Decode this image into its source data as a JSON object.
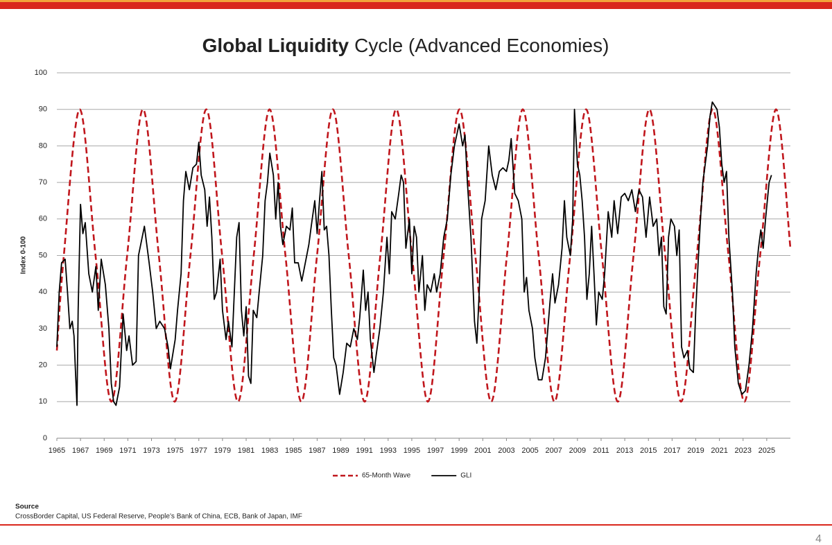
{
  "chart_data": {
    "type": "line",
    "title": {
      "bold": "Global Liquidity",
      "regular": "Cycle (Advanced Economies)"
    },
    "y_axis_label": "Index 0-100",
    "xlim": [
      1965,
      2027
    ],
    "xticks": [
      1965,
      1967,
      1969,
      1971,
      1973,
      1975,
      1977,
      1979,
      1981,
      1983,
      1985,
      1987,
      1989,
      1991,
      1993,
      1995,
      1997,
      1999,
      2001,
      2003,
      2005,
      2007,
      2009,
      2011,
      2013,
      2015,
      2017,
      2019,
      2021,
      2023,
      2025
    ],
    "ylim": [
      0,
      100
    ],
    "yticks": [
      0,
      10,
      20,
      30,
      40,
      50,
      60,
      70,
      80,
      90,
      100
    ],
    "grid": true,
    "legend": "bottom",
    "series": [
      {
        "name": "65-Month Wave",
        "color": "#c0161c",
        "dashed": true,
        "smooth": true,
        "x": [
          1965,
          1965.59,
          1966.93,
          1968.27,
          1969.61,
          1970.94,
          1972.28,
          1973.62,
          1974.96,
          1976.29,
          1977.63,
          1978.97,
          1980.31,
          1981.64,
          1982.98,
          1984.32,
          1985.66,
          1986.99,
          1988.33,
          1989.67,
          1991.01,
          1992.34,
          1993.68,
          1995.02,
          1996.36,
          1997.69,
          1999.03,
          2000.37,
          2001.71,
          2003.04,
          2004.38,
          2005.72,
          2007.06,
          2008.39,
          2009.73,
          2011.07,
          2012.41,
          2013.74,
          2015.08,
          2016.42,
          2017.76,
          2019.09,
          2020.43,
          2021.77,
          2023.11,
          2024.44,
          2025.78,
          2027
        ],
        "values": [
          24,
          50,
          90,
          50,
          10,
          50,
          90,
          50,
          10,
          50,
          90,
          50,
          10,
          50,
          90,
          50,
          10,
          50,
          90,
          50,
          10,
          50,
          90,
          50,
          10,
          50,
          90,
          50,
          10,
          50,
          90,
          50,
          10,
          50,
          90,
          50,
          10,
          50,
          90,
          50,
          10,
          50,
          90,
          50,
          10,
          50,
          90,
          52
        ]
      },
      {
        "name": "GLI",
        "color": "#000000",
        "dashed": false,
        "smooth": false,
        "x": [
          1965,
          1965.2,
          1965.4,
          1965.7,
          1965.9,
          1966.1,
          1966.3,
          1966.45,
          1966.55,
          1966.7,
          1966.8,
          1967,
          1967.2,
          1967.4,
          1967.7,
          1968,
          1968.3,
          1968.5,
          1968.75,
          1969.1,
          1969.4,
          1969.6,
          1969.8,
          1970,
          1970.3,
          1970.6,
          1970.9,
          1971.1,
          1971.4,
          1971.7,
          1971.9,
          1972.4,
          1972.8,
          1973.1,
          1973.4,
          1973.7,
          1974.1,
          1974.4,
          1974.6,
          1975,
          1975.2,
          1975.5,
          1975.7,
          1975.9,
          1976.2,
          1976.5,
          1976.8,
          1977,
          1977.2,
          1977.5,
          1977.7,
          1977.9,
          1978.1,
          1978.3,
          1978.5,
          1978.8,
          1979,
          1979.3,
          1979.5,
          1979.8,
          1980,
          1980.2,
          1980.4,
          1980.6,
          1980.8,
          1981,
          1981.2,
          1981.4,
          1981.6,
          1981.9,
          1982.1,
          1982.4,
          1982.6,
          1982.8,
          1983,
          1983.3,
          1983.5,
          1983.7,
          1983.9,
          1984.1,
          1984.4,
          1984.7,
          1984.9,
          1985.1,
          1985.4,
          1985.7,
          1986,
          1986.3,
          1986.5,
          1986.8,
          1987,
          1987.2,
          1987.4,
          1987.6,
          1987.8,
          1988,
          1988.2,
          1988.4,
          1988.6,
          1988.9,
          1989.2,
          1989.5,
          1989.8,
          1990.1,
          1990.4,
          1990.6,
          1990.9,
          1991.1,
          1991.3,
          1991.5,
          1991.8,
          1992,
          1992.3,
          1992.6,
          1992.9,
          1993.1,
          1993.3,
          1993.6,
          1993.9,
          1994.1,
          1994.3,
          1994.5,
          1994.8,
          1995,
          1995.2,
          1995.4,
          1995.6,
          1995.9,
          1996.1,
          1996.3,
          1996.6,
          1996.9,
          1997.1,
          1997.4,
          1997.7,
          1998,
          1998.3,
          1998.6,
          1999,
          1999.3,
          1999.5,
          1999.7,
          2000,
          2000.3,
          2000.5,
          2000.7,
          2000.9,
          2001.2,
          2001.5,
          2001.8,
          2002.1,
          2002.4,
          2002.7,
          2003,
          2003.2,
          2003.4,
          2003.7,
          2004,
          2004.3,
          2004.5,
          2004.7,
          2004.9,
          2005.2,
          2005.4,
          2005.7,
          2006,
          2006.3,
          2006.5,
          2006.7,
          2006.9,
          2007.1,
          2007.4,
          2007.7,
          2007.9,
          2008.1,
          2008.4,
          2008.6,
          2008.75,
          2009,
          2009.2,
          2009.4,
          2009.6,
          2009.8,
          2010,
          2010.2,
          2010.4,
          2010.6,
          2010.8,
          2011.1,
          2011.3,
          2011.6,
          2011.9,
          2012.1,
          2012.4,
          2012.7,
          2013,
          2013.3,
          2013.6,
          2013.9,
          2014.2,
          2014.5,
          2014.8,
          2015.1,
          2015.4,
          2015.7,
          2015.9,
          2016.1,
          2016.3,
          2016.5,
          2016.7,
          2016.9,
          2017.2,
          2017.4,
          2017.6,
          2017.8,
          2018,
          2018.3,
          2018.5,
          2018.8,
          2019,
          2019.2,
          2019.4,
          2019.6,
          2019.8,
          2020,
          2020.2,
          2020.4,
          2020.8,
          2021,
          2021.2,
          2021.4,
          2021.6,
          2021.8,
          2022.1,
          2022.3,
          2022.6,
          2022.9,
          2023.2,
          2023.5,
          2023.8,
          2024.1,
          2024.3,
          2024.5,
          2024.7,
          2024.9,
          2025.2,
          2025.4
        ],
        "values": [
          25,
          40,
          48,
          49,
          40,
          30,
          32,
          28,
          20,
          9,
          35,
          64,
          56,
          59,
          45,
          40,
          47,
          35,
          49,
          42,
          30,
          15,
          10,
          9,
          14,
          34,
          24,
          28,
          20,
          21,
          50,
          58,
          48,
          40,
          30,
          32,
          30,
          25,
          19,
          27,
          35,
          45,
          65,
          73,
          68,
          74,
          75,
          81,
          72,
          68,
          58,
          66,
          55,
          38,
          40,
          49,
          35,
          27,
          32,
          25,
          40,
          55,
          59,
          35,
          28,
          36,
          17,
          15,
          35,
          33,
          40,
          50,
          65,
          70,
          78,
          72,
          60,
          70,
          58,
          53,
          58,
          57,
          63,
          48,
          48,
          43,
          48,
          53,
          58,
          65,
          56,
          65,
          73,
          57,
          58,
          50,
          35,
          22,
          20,
          12,
          18,
          26,
          25,
          30,
          27,
          33,
          46,
          35,
          40,
          27,
          18,
          23,
          30,
          40,
          55,
          45,
          62,
          60,
          67,
          72,
          70,
          52,
          60,
          45,
          58,
          55,
          40,
          50,
          35,
          42,
          40,
          45,
          40,
          45,
          55,
          60,
          72,
          80,
          86,
          80,
          83,
          70,
          55,
          32,
          26,
          40,
          60,
          65,
          80,
          72,
          68,
          73,
          74,
          73,
          76,
          82,
          67,
          65,
          60,
          40,
          44,
          35,
          30,
          22,
          16,
          16,
          22,
          30,
          38,
          45,
          37,
          42,
          52,
          65,
          55,
          50,
          60,
          90,
          75,
          72,
          65,
          55,
          38,
          45,
          58,
          45,
          31,
          40,
          38,
          45,
          62,
          55,
          65,
          56,
          66,
          67,
          65,
          68,
          62,
          68,
          66,
          55,
          66,
          58,
          60,
          50,
          55,
          36,
          34,
          55,
          60,
          58,
          50,
          57,
          25,
          22,
          24,
          19,
          18,
          35,
          48,
          60,
          70,
          75,
          80,
          88,
          92,
          90,
          85,
          75,
          70,
          73,
          55,
          40,
          25,
          15,
          12,
          13,
          20,
          30,
          45,
          52,
          57,
          52,
          60,
          70,
          72
        ]
      }
    ],
    "source_heading": "Source",
    "source": "CrossBorder Capital, US Federal Reserve, People’s Bank of China, ECB, Bank of Japan, IMF",
    "page_number": "4"
  }
}
